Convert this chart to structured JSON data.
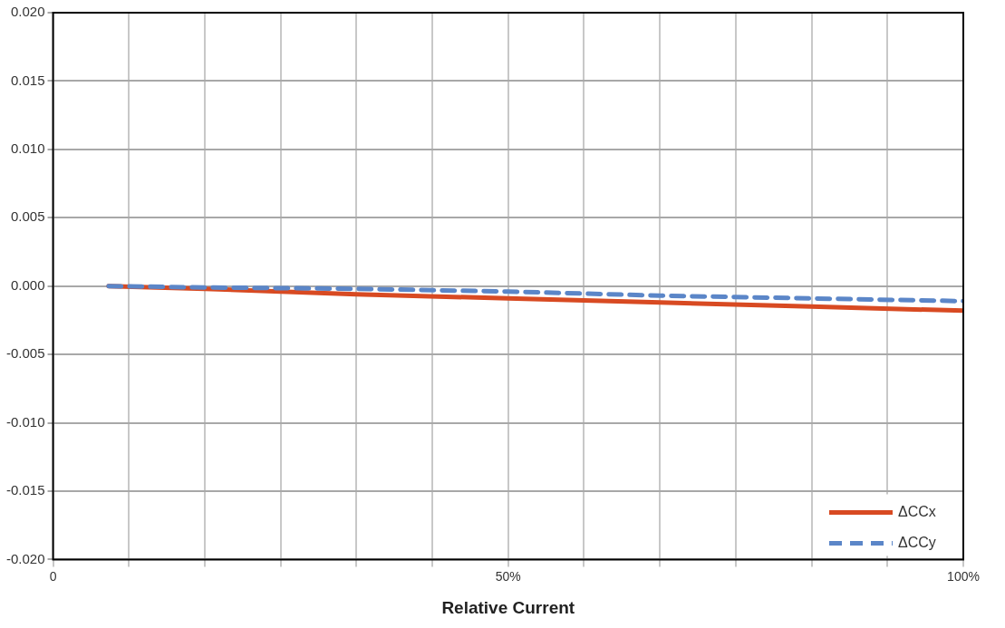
{
  "chart_data": {
    "type": "line",
    "xlabel": "Relative Current",
    "xlim": [
      0,
      100
    ],
    "xticks": [
      0,
      {
        "value": 8.333,
        "label": null
      },
      {
        "value": 16.667,
        "label": null
      },
      {
        "value": 25,
        "label": null
      },
      {
        "value": 33.333,
        "label": null
      },
      {
        "value": 41.667,
        "label": null
      },
      {
        "value": 50,
        "label": "50%"
      },
      {
        "value": 58.333,
        "label": null
      },
      {
        "value": 66.667,
        "label": null
      },
      {
        "value": 75,
        "label": null
      },
      {
        "value": 83.333,
        "label": null
      },
      {
        "value": 91.667,
        "label": null
      },
      {
        "value": 100,
        "label": "100%"
      }
    ],
    "ylim": [
      -0.02,
      0.02
    ],
    "yticks": [
      {
        "value": -0.02,
        "label": "-0.020"
      },
      {
        "value": -0.015,
        "label": "-0.015"
      },
      {
        "value": -0.01,
        "label": "-0.010"
      },
      {
        "value": -0.005,
        "label": "-0.005"
      },
      {
        "value": 0,
        "label": "0.000"
      },
      {
        "value": 0.005,
        "label": "0.005"
      },
      {
        "value": 0.01,
        "label": "0.010"
      },
      {
        "value": 0.015,
        "label": "0.015"
      },
      {
        "value": 0.02,
        "label": "0.020"
      }
    ],
    "x": [
      6.1,
      16.7,
      33.3,
      50,
      66.7,
      83.3,
      100
    ],
    "series": [
      {
        "name": "ΔCCx",
        "color": "#d84a22",
        "line_style": "solid",
        "values": [
          0,
          -0.0002,
          -0.0006,
          -0.0009,
          -0.0012,
          -0.0015,
          -0.0018
        ]
      },
      {
        "name": "ΔCCy",
        "color": "#5b86c8",
        "line_style": "dashed",
        "values": [
          0,
          -0.0001,
          -0.0002,
          -0.0004,
          -0.0007,
          -0.0009,
          -0.0011
        ]
      }
    ],
    "grid": true,
    "legend": "bottom right",
    "marker": "none"
  }
}
